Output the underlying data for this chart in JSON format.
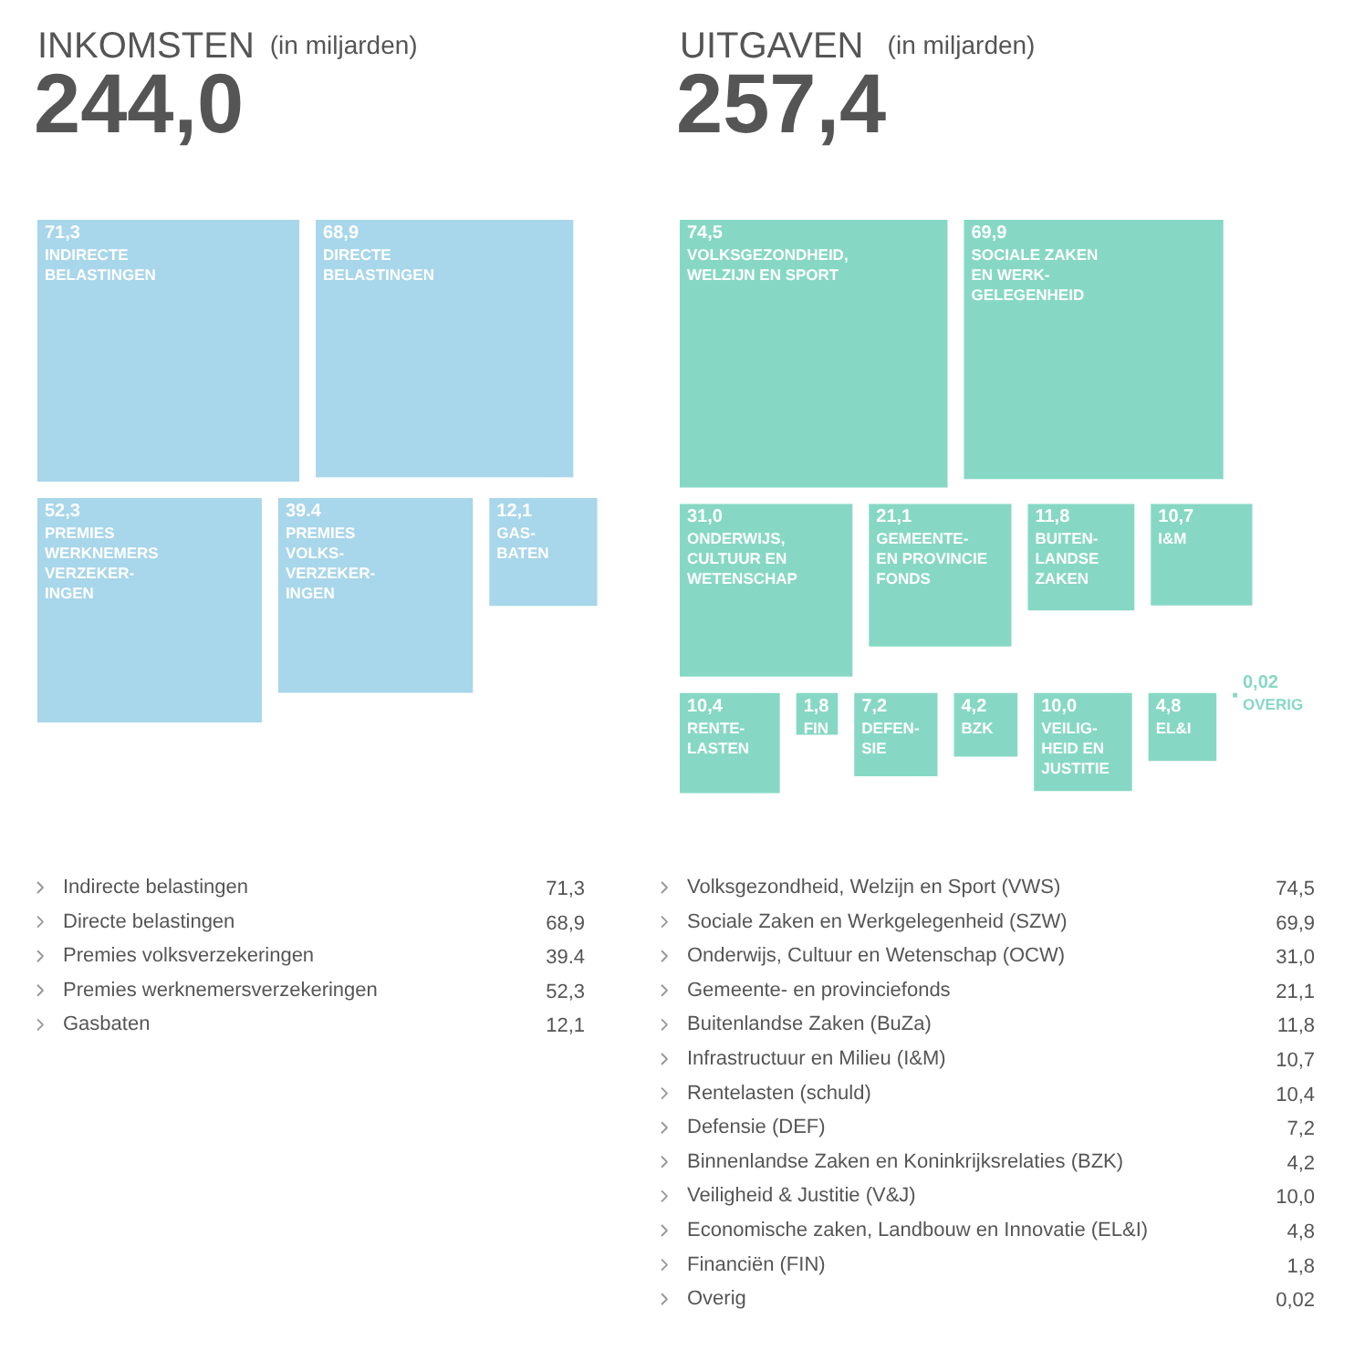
{
  "chart_data": [
    {
      "type": "other",
      "title": "INKOMSTEN",
      "subtitle": "(in miljarden)",
      "annotations": [
        "244,0"
      ],
      "color": "#a8d6ea",
      "categories": [
        "INDIRECTE\nBELASTINGEN",
        "DIRECTE\nBELASTINGEN",
        "PREMIES\nWERKNEMERS\nVERZEKER-\nINGEN",
        "PREMIES\nVOLKS-\nVERZEKER-\nINGEN",
        "GAS-\nBATEN"
      ],
      "values": [
        71.3,
        68.9,
        52.3,
        39.4,
        12.1
      ],
      "value_labels": [
        "71,3",
        "68,9",
        "52,3",
        "39.4",
        "12,1"
      ]
    },
    {
      "type": "other",
      "title": "UITGAVEN",
      "subtitle": "(in miljarden)",
      "annotations": [
        "257,4"
      ],
      "color": "#86d8c4",
      "categories": [
        "VOLKSGEZONDHEID,\nWELZIJN EN SPORT",
        "SOCIALE ZAKEN\nEN WERK-\nGELEGENHEID",
        "ONDERWIJS,\nCULTUUR EN\nWETENSCHAP",
        "GEMEENTE-\nEN PROVINCIE\nFONDS",
        "BUITEN-\nLANDSE\nZAKEN",
        "I&M",
        "RENTE-\nLASTEN",
        "FIN",
        "DEFEN-\nSIE",
        "BZK",
        "VEILIG-\nHEID EN\nJUSTITIE",
        "EL&I",
        "OVERIG"
      ],
      "values": [
        74.5,
        69.9,
        31.0,
        21.1,
        11.8,
        10.7,
        10.4,
        1.8,
        7.2,
        4.2,
        10.0,
        4.8,
        0.02
      ],
      "value_labels": [
        "74,5",
        "69,9",
        "31,0",
        "21,1",
        "11,8",
        "10,7",
        "10,4",
        "1,8",
        "7,2",
        "4,2",
        "10,0",
        "4,8",
        "0,02"
      ]
    },
    {
      "type": "other",
      "categories": [
        "Indirecte belastingen",
        "Directe belastingen",
        "Premies volksverzekeringen",
        "Premies werknemersverzekeringen",
        "Gasbaten"
      ],
      "values": [
        71.3,
        68.9,
        39.4,
        52.3,
        12.1
      ],
      "value_labels": [
        "71,3",
        "68,9",
        "39.4",
        "52,3",
        "12,1"
      ]
    },
    {
      "type": "other",
      "categories": [
        "Volksgezondheid, Welzijn en Sport (VWS)",
        "Sociale Zaken en Werkgelegenheid (SZW)",
        "Onderwijs, Cultuur en Wetenschap (OCW)",
        "Gemeente- en provinciefonds",
        "Buitenlandse Zaken (BuZa)",
        "Infrastructuur en Milieu (I&M)",
        "Rentelasten (schuld)",
        "Defensie (DEF)",
        "Binnenlandse Zaken en Koninkrijksrelaties (BZK)",
        "Veiligheid & Justitie (V&J)",
        "Economische zaken, Landbouw en Innovatie (EL&I)",
        "Financiën (FIN)",
        "Overig"
      ],
      "values": [
        74.5,
        69.9,
        31.0,
        21.1,
        11.8,
        10.7,
        10.4,
        7.2,
        4.2,
        10.0,
        4.8,
        1.8,
        0.02
      ],
      "value_labels": [
        "74,5",
        "69,9",
        "31,0",
        "21,1",
        "11,8",
        "10,7",
        "10,4",
        "7,2",
        "4,2",
        "10,0",
        "4,8",
        "1,8",
        "0,02"
      ]
    }
  ]
}
